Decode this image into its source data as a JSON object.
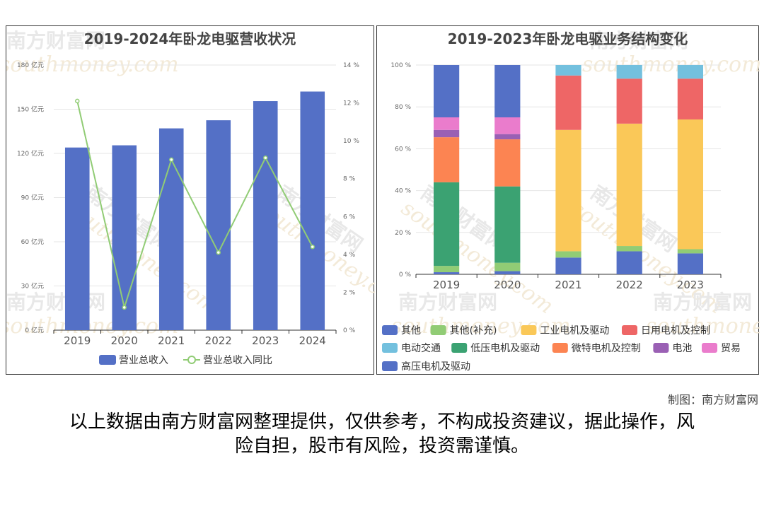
{
  "charts": {
    "left_title": "2019-2024年卧龙电驱营收状况",
    "right_title": "2019-2023年卧龙电驱业务结构变化"
  },
  "credit": "制图：南方财富网",
  "disclaimer_line1": "以上数据由南方财富网整理提供，仅供参考，不构成投资建议，据此操作，风",
  "disclaimer_line2": "险自担，股市有风险，投资需谨慎。",
  "watermark": {
    "cn": "南方财富网",
    "en": "southmoney.com"
  },
  "chart_data": [
    {
      "type": "bar",
      "title": "2019-2024年卧龙电驱营收状况",
      "categories": [
        "2019",
        "2020",
        "2021",
        "2022",
        "2023",
        "2024"
      ],
      "series": [
        {
          "name": "营业总收入",
          "type": "bar",
          "axis": "left",
          "color": "#5470c6",
          "values": [
            124,
            125.5,
            137,
            142.5,
            155.5,
            162
          ]
        },
        {
          "name": "营业总收入同比",
          "type": "line",
          "axis": "right",
          "color": "#91cc75",
          "values": [
            12.1,
            1.2,
            9.0,
            4.1,
            9.1,
            4.4
          ]
        }
      ],
      "y_left": {
        "ticks": [
          "0 亿元",
          "30 亿元",
          "60 亿元",
          "90 亿元",
          "120 亿元",
          "150 亿元",
          "180 亿元"
        ],
        "ylim": [
          0,
          180
        ]
      },
      "y_right": {
        "ticks": [
          "0 %",
          "2 %",
          "4 %",
          "6 %",
          "8 %",
          "10 %",
          "12 %",
          "14 %"
        ],
        "ylim": [
          0,
          14
        ]
      },
      "grid": true,
      "legend_position": "bottom"
    },
    {
      "type": "bar",
      "stacked": true,
      "title": "2019-2023年卧龙电驱业务结构变化",
      "categories": [
        "2019",
        "2020",
        "2021",
        "2022",
        "2023"
      ],
      "y_ticks": [
        "0 %",
        "20 %",
        "40 %",
        "60 %",
        "80 %",
        "100 %"
      ],
      "ylim": [
        0,
        100
      ],
      "grid": true,
      "legend_position": "bottom",
      "series": [
        {
          "name": "其他",
          "color": "#5470c6",
          "values": [
            1,
            1.5,
            8,
            11,
            10
          ]
        },
        {
          "name": "其他(补充)",
          "color": "#91cc75",
          "values": [
            3,
            4,
            3,
            2.5,
            2
          ]
        },
        {
          "name": "工业电机及驱动",
          "color": "#fac858",
          "values": [
            0,
            0,
            58,
            58.5,
            62
          ]
        },
        {
          "name": "日用电机及控制",
          "color": "#ee6666",
          "values": [
            0,
            0,
            26,
            21.5,
            19.5
          ]
        },
        {
          "name": "电动交通",
          "color": "#73c0de",
          "values": [
            0,
            0,
            5,
            6.5,
            6.5
          ]
        },
        {
          "name": "低压电机及驱动",
          "color": "#3ba272",
          "values": [
            40,
            36.5,
            0,
            0,
            0
          ]
        },
        {
          "name": "微特电机及控制",
          "color": "#fc8452",
          "values": [
            21.5,
            22.5,
            0,
            0,
            0
          ]
        },
        {
          "name": "电池",
          "color": "#9a60b4",
          "values": [
            3.5,
            2.5,
            0,
            0,
            0
          ]
        },
        {
          "name": "贸易",
          "color": "#ea7ccc",
          "values": [
            6,
            8,
            0,
            0,
            0
          ]
        },
        {
          "name": "高压电机及驱动",
          "color": "#5470c6",
          "values": [
            25,
            25,
            0,
            0,
            0
          ]
        }
      ]
    }
  ]
}
